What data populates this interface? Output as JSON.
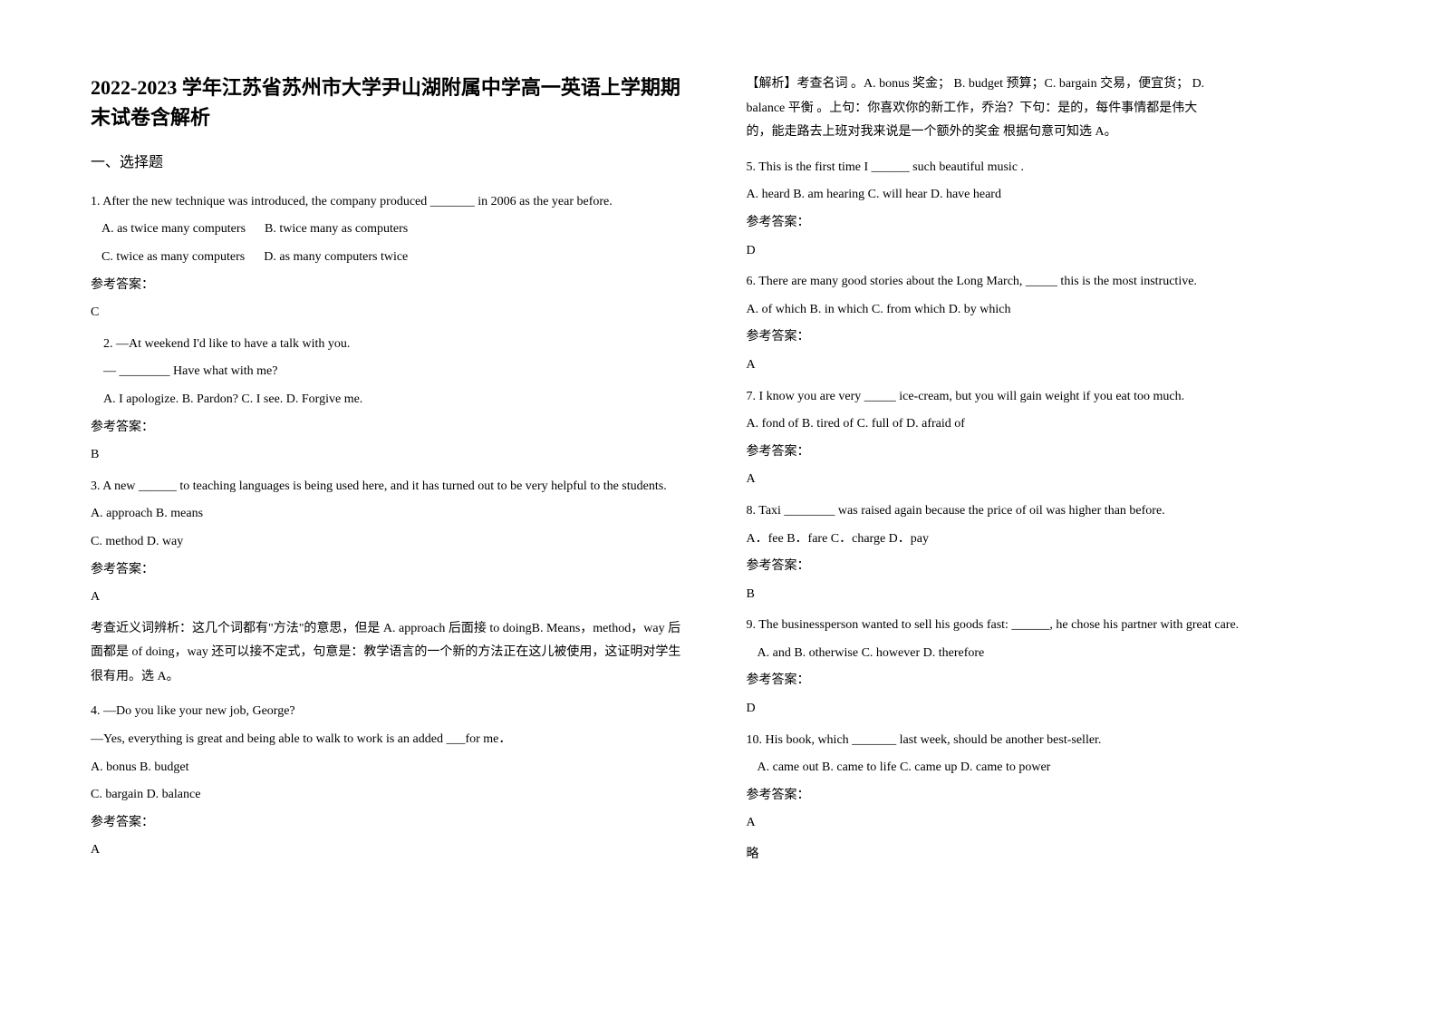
{
  "title": "2022-2023 学年江苏省苏州市大学尹山湖附属中学高一英语上学期期末试卷含解析",
  "section1": "一、选择题",
  "q1": {
    "text": "1. After the new technique was introduced, the company produced _______ in 2006 as the year before.",
    "optA": "A. as twice many computers",
    "optB": "B. twice many as computers",
    "optC": "C. twice as many computers",
    "optD": "D. as many computers twice",
    "answerLabel": "参考答案：",
    "answer": "C"
  },
  "q2": {
    "line1": "2. —At weekend I'd like to have a talk with you.",
    "line2": "— ________ Have what with me?",
    "options": "A. I apologize.     B. Pardon?     C. I see.          D. Forgive me.",
    "answerLabel": "参考答案：",
    "answer": "B"
  },
  "q3": {
    "text": "3. A new ______ to teaching languages is being used here, and it has turned out to be very helpful to the students.",
    "optAB": "A. approach    B. means",
    "optCD": "C. method    D. way",
    "answerLabel": "参考答案：",
    "answer": "A",
    "explanation": "考查近义词辨析：这几个词都有\"方法\"的意思，但是 A. approach 后面接 to doingB. Means，method，way 后面都是 of doing，way 还可以接不定式，句意是：教学语言的一个新的方法正在这儿被使用，这证明对学生很有用。选 A。"
  },
  "q4": {
    "line1": "4. —Do you like your new job, George?",
    "line2": "—Yes, everything is great and being able to walk to work is an added ___for me．",
    "optAB": "A. bonus    B. budget",
    "optCD": "C. bargain    D. balance",
    "answerLabel": "参考答案：",
    "answer": "A",
    "explanation1": "【解析】考查名词 。A. bonus 奖金；      B. budget 预算；C. bargain 交易，便宜货；    D.",
    "explanation2": "balance 平衡 。上句：你喜欢你的新工作，乔治？下句：是的，每件事情都是伟大",
    "explanation3": "的，能走路去上班对我来说是一个额外的奖金  根据句意可知选 A。"
  },
  "q5": {
    "text": "5. This is the first time I ______ such beautiful music .",
    "options": "A. heard          B. am hearing      C. will hear          D. have heard",
    "answerLabel": "参考答案：",
    "answer": "D"
  },
  "q6": {
    "text": "6.  There are many good stories about the Long March, _____ this is the most instructive.",
    "options": "A. of which   B. in which    C. from which    D. by which",
    "answerLabel": "参考答案：",
    "answer": "A"
  },
  "q7": {
    "text": "7. I know you are very _____ ice-cream, but you will gain weight if you eat too much.",
    "options": "A. fond of  B. tired of        C. full of            D. afraid of",
    "answerLabel": "参考答案：",
    "answer": "A"
  },
  "q8": {
    "text": "8. Taxi ________ was raised again because the price of oil was higher than before.",
    "options": "A．fee            B．fare  C．charge     D．pay",
    "answerLabel": "参考答案：",
    "answer": "B"
  },
  "q9": {
    "text": "9. The businessperson wanted to sell his goods fast: ______, he chose his partner with great care.",
    "options": "A. and        B. otherwise        C. however     D. therefore",
    "answerLabel": "参考答案：",
    "answer": "D"
  },
  "q10": {
    "text": "10. His book, which _______ last week, should be another best-seller.",
    "options": "A. came out         B. came to life        C. came up             D. came to power",
    "answerLabel": "参考答案：",
    "answer": "A",
    "note": "略"
  }
}
